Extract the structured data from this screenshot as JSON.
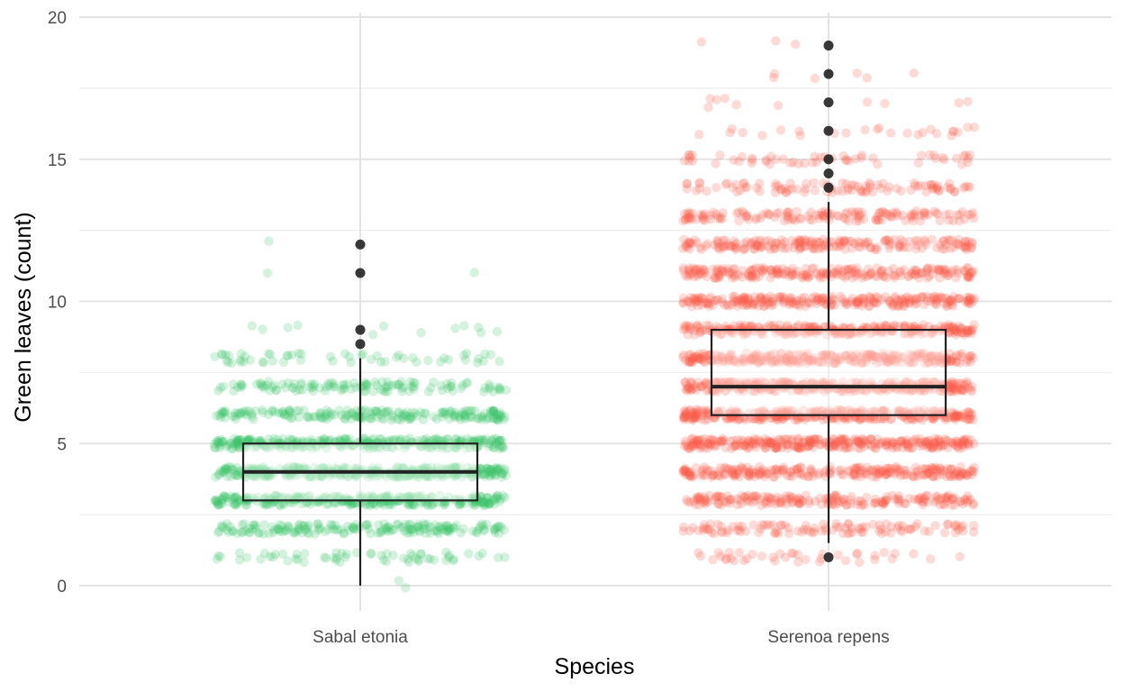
{
  "chart_data": {
    "type": "box",
    "xlabel": "Species",
    "ylabel": "Green leaves (count)",
    "ylim": [
      -0.4,
      20.4
    ],
    "y_ticks": [
      0,
      5,
      10,
      15,
      20
    ],
    "categories": [
      "Sabal etonia",
      "Serenoa repens"
    ],
    "grid": true,
    "legend": "none",
    "series": [
      {
        "category": "Sabal etonia",
        "color": "#3cc668",
        "box": {
          "whisker_low": 0,
          "q1": 3,
          "median": 4,
          "q3": 5,
          "whisker_high": 8
        },
        "outliers": [
          8.5,
          9,
          11,
          12
        ],
        "jitter_counts": {
          "0": 2,
          "1": 60,
          "2": 180,
          "3": 300,
          "4": 340,
          "5": 300,
          "6": 200,
          "7": 120,
          "8": 55,
          "9": 12,
          "11": 2,
          "12": 1
        }
      },
      {
        "category": "Serenoa repens",
        "color": "#fb5c4a",
        "box": {
          "whisker_low": 1.5,
          "q1": 6,
          "median": 7,
          "q3": 9,
          "whisker_high": 13.5
        },
        "outliers": [
          1,
          14,
          14.5,
          15,
          16,
          17,
          18,
          19
        ],
        "jitter_counts": {
          "1": 40,
          "2": 110,
          "3": 200,
          "4": 260,
          "5": 320,
          "6": 340,
          "7": 330,
          "8": 310,
          "9": 280,
          "10": 260,
          "11": 230,
          "12": 200,
          "13": 150,
          "14": 100,
          "15": 55,
          "16": 25,
          "17": 10,
          "18": 6,
          "19": 3
        }
      }
    ]
  }
}
